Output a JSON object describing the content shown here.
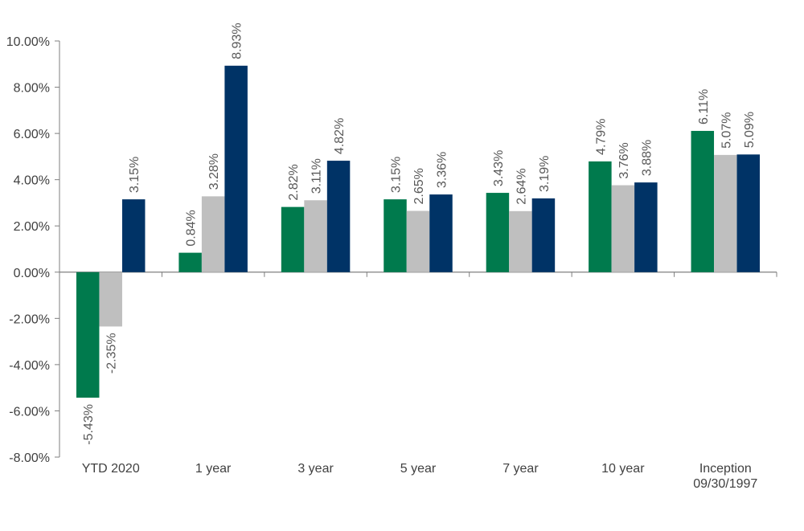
{
  "chart_data": {
    "type": "bar",
    "categories": [
      "YTD 2020",
      "1 year",
      "3 year",
      "5 year",
      "7 year",
      "10 year",
      "Inception\n09/30/1997"
    ],
    "series": [
      {
        "color": "#007A4D",
        "values": [
          -5.43,
          0.84,
          2.82,
          3.15,
          3.43,
          4.79,
          6.11
        ]
      },
      {
        "color": "#BFBFBF",
        "values": [
          -2.35,
          3.28,
          3.11,
          2.65,
          2.64,
          3.76,
          5.07
        ]
      },
      {
        "color": "#003366",
        "values": [
          3.15,
          8.93,
          4.82,
          3.36,
          3.19,
          3.88,
          5.09
        ]
      }
    ],
    "data_labels": [
      [
        "-5.43%",
        "0.84%",
        "2.82%",
        "3.15%",
        "3.43%",
        "4.79%",
        "6.11%"
      ],
      [
        "-2.35%",
        "3.28%",
        "3.11%",
        "2.65%",
        "2.64%",
        "3.76%",
        "5.07%"
      ],
      [
        "3.15%",
        "8.93%",
        "4.82%",
        "3.36%",
        "3.19%",
        "3.88%",
        "5.09%"
      ]
    ],
    "ylim": [
      -8,
      10
    ],
    "yticks": [
      -8,
      -6,
      -4,
      -2,
      0,
      2,
      4,
      6,
      8,
      10
    ],
    "ytick_labels": [
      "-8.00%",
      "-6.00%",
      "-4.00%",
      "-2.00%",
      "0.00%",
      "2.00%",
      "4.00%",
      "6.00%",
      "8.00%",
      "10.00%"
    ],
    "title": "",
    "xlabel": "",
    "ylabel": "",
    "legend": "none",
    "grid": false
  }
}
